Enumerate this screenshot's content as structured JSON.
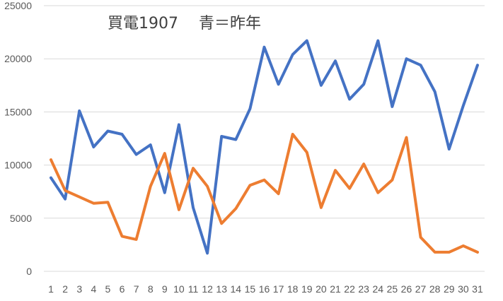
{
  "chart_data": {
    "type": "line",
    "title": "買電1907　 青＝昨年",
    "x": [
      "1",
      "2",
      "3",
      "4",
      "5",
      "6",
      "7",
      "8",
      "9",
      "10",
      "11",
      "12",
      "13",
      "14",
      "15",
      "16",
      "17",
      "18",
      "19",
      "20",
      "21",
      "22",
      "23",
      "24",
      "25",
      "26",
      "27",
      "28",
      "29",
      "30",
      "31"
    ],
    "ylim": [
      0,
      25000
    ],
    "yticks": [
      0,
      5000,
      10000,
      15000,
      20000,
      25000
    ],
    "grid": true,
    "series": [
      {
        "color": "#4472C4",
        "values": [
          8800,
          6800,
          15100,
          11700,
          13200,
          12900,
          11000,
          11900,
          7400,
          13800,
          6000,
          1700,
          12700,
          12400,
          15300,
          21100,
          17600,
          20400,
          21700,
          17500,
          19800,
          16200,
          17600,
          21700,
          15500,
          20000,
          19400,
          16900,
          11500,
          15600,
          19400
        ]
      },
      {
        "color": "#ED7D31",
        "values": [
          10500,
          7600,
          7000,
          6400,
          6500,
          3300,
          3000,
          8000,
          11100,
          5800,
          9700,
          8000,
          4500,
          5900,
          8100,
          8600,
          7300,
          12900,
          11200,
          6000,
          9500,
          7800,
          10100,
          7400,
          8600,
          12600,
          3200,
          1800,
          1800,
          2400,
          1800
        ]
      }
    ]
  }
}
